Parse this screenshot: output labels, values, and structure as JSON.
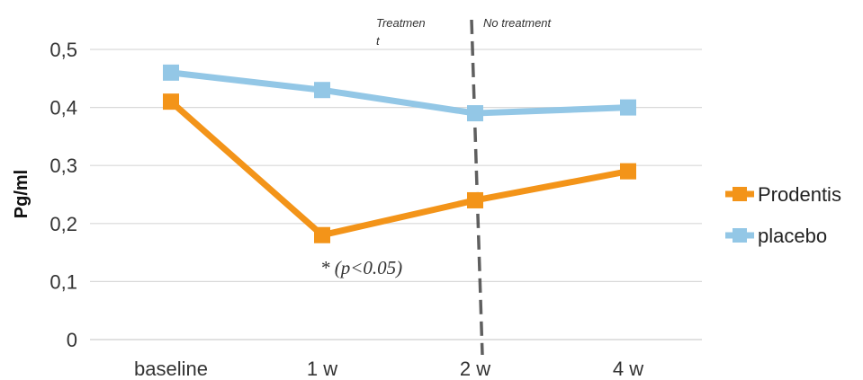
{
  "chart_data": {
    "type": "line",
    "categories": [
      "baseline",
      "1 w",
      "2 w",
      "4 w"
    ],
    "series": [
      {
        "name": "Prodentis",
        "values": [
          0.41,
          0.18,
          0.24,
          0.29
        ],
        "color": "#f39419"
      },
      {
        "name": "placebo",
        "values": [
          0.46,
          0.43,
          0.39,
          0.4
        ],
        "color": "#93c7e6"
      }
    ],
    "ylabel": "Pg/ml",
    "ylim": [
      0,
      0.5
    ],
    "yticks": [
      {
        "value": 0,
        "label": "0"
      },
      {
        "value": 0.1,
        "label": "0,1"
      },
      {
        "value": 0.2,
        "label": "0,2"
      },
      {
        "value": 0.3,
        "label": "0,3"
      },
      {
        "value": 0.4,
        "label": "0,4"
      },
      {
        "value": 0.5,
        "label": "0,5"
      }
    ],
    "grid": true,
    "legend_position": "right",
    "annotations": {
      "treatment_line1": "Treatmen",
      "treatment_line2": "t",
      "no_treatment": "No treatment",
      "significance": "* (p<0.05)"
    }
  }
}
